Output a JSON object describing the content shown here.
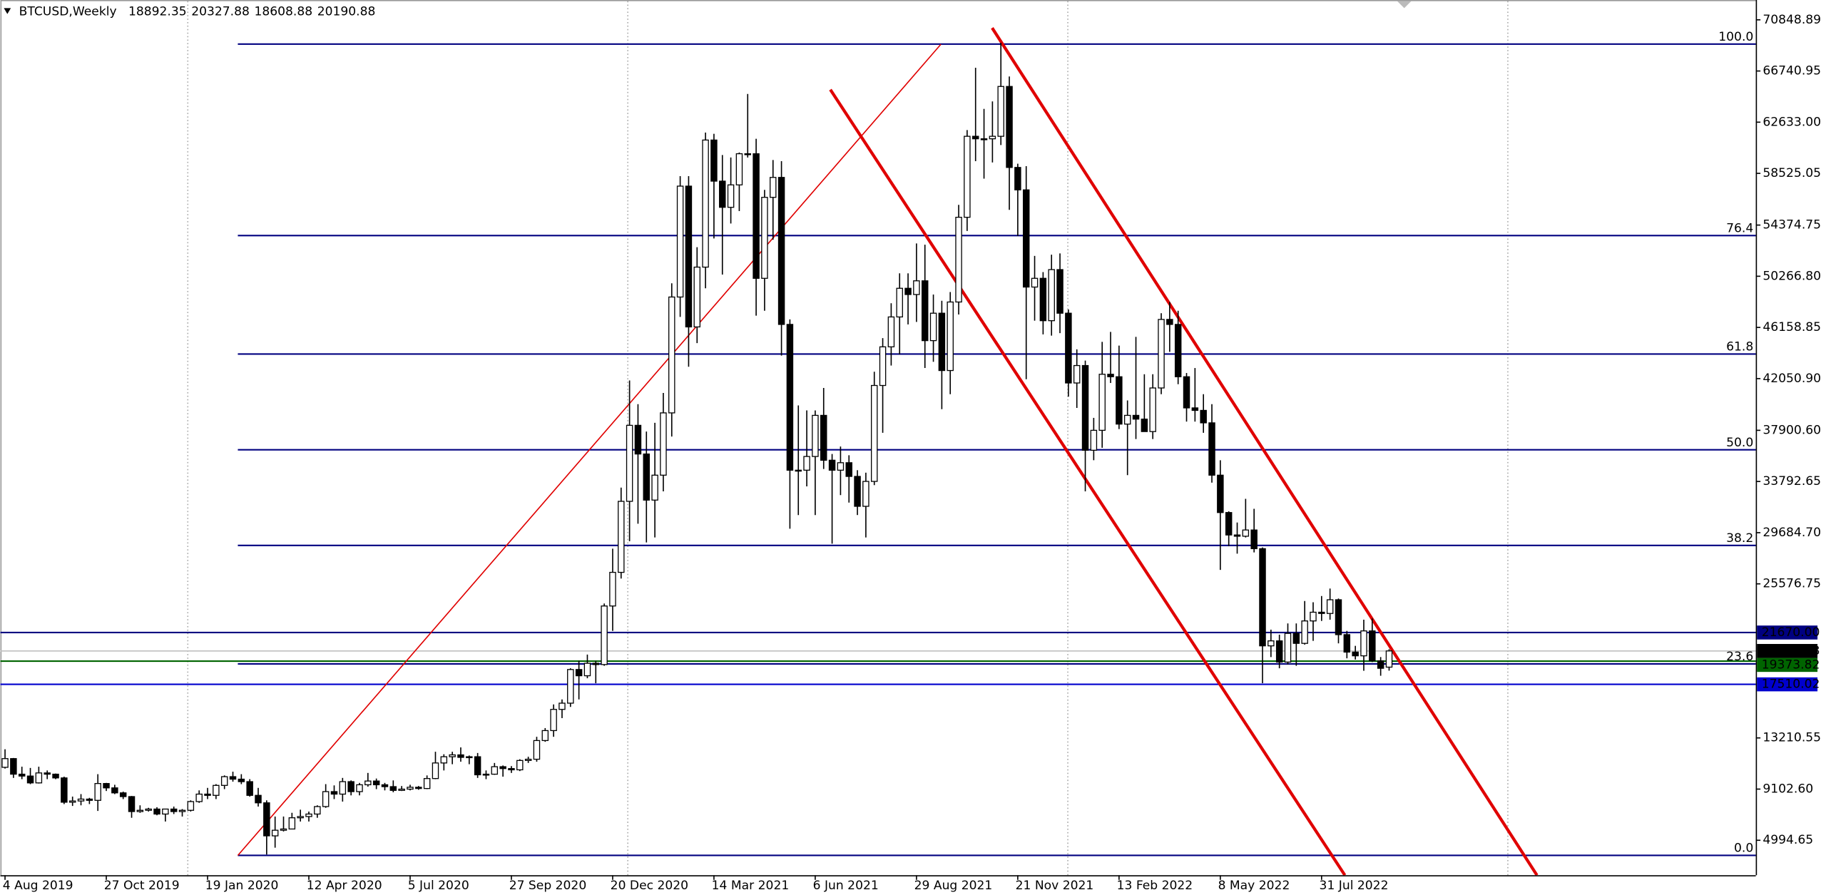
{
  "chart_data": {
    "type": "candlestick",
    "title": "BTCUSD,Weekly",
    "categories": [
      "4 Aug 2019",
      null,
      null,
      null,
      null,
      null,
      null,
      null,
      null,
      null,
      null,
      null,
      "27 Oct 2019",
      null,
      null,
      null,
      null,
      null,
      null,
      null,
      null,
      null,
      null,
      null,
      "19 Jan 2020",
      null,
      null,
      null,
      null,
      null,
      null,
      null,
      null,
      null,
      null,
      null,
      "12 Apr 2020",
      null,
      null,
      null,
      null,
      null,
      null,
      null,
      null,
      null,
      null,
      null,
      "5 Jul 2020",
      null,
      null,
      null,
      null,
      null,
      null,
      null,
      null,
      null,
      null,
      null,
      "27 Sep 2020",
      null,
      null,
      null,
      null,
      null,
      null,
      null,
      null,
      null,
      null,
      null,
      "20 Dec 2020",
      null,
      null,
      null,
      null,
      null,
      null,
      null,
      null,
      null,
      null,
      null,
      "14 Mar 2021",
      null,
      null,
      null,
      null,
      null,
      null,
      null,
      null,
      null,
      null,
      null,
      "6 Jun 2021",
      null,
      null,
      null,
      null,
      null,
      null,
      null,
      null,
      null,
      null,
      null,
      "29 Aug 2021",
      null,
      null,
      null,
      null,
      null,
      null,
      null,
      null,
      null,
      null,
      null,
      "21 Nov 2021",
      null,
      null,
      null,
      null,
      null,
      null,
      null,
      null,
      null,
      null,
      null,
      "13 Feb 2022",
      null,
      null,
      null,
      null,
      null,
      null,
      null,
      null,
      null,
      null,
      null,
      "8 May 2022",
      null,
      null,
      null,
      null,
      null,
      null,
      null,
      null,
      null,
      null,
      null,
      "31 Jul 2022",
      null,
      null,
      null,
      null,
      null,
      null,
      null,
      null
    ],
    "ohlc": [
      [
        10850,
        12300,
        10750,
        11550
      ],
      [
        11550,
        11600,
        10000,
        10300
      ],
      [
        10300,
        10900,
        9900,
        10150
      ],
      [
        10150,
        10800,
        9500,
        9600
      ],
      [
        9600,
        10900,
        9550,
        10400
      ],
      [
        10400,
        10600,
        9900,
        10300
      ],
      [
        10300,
        10350,
        9900,
        10000
      ],
      [
        10000,
        10100,
        7900,
        8050
      ],
      [
        8050,
        8500,
        7750,
        8150
      ],
      [
        8150,
        8700,
        7800,
        8300
      ],
      [
        8300,
        8400,
        7900,
        8200
      ],
      [
        8200,
        10300,
        7350,
        9550
      ],
      [
        9550,
        9600,
        8950,
        9200
      ],
      [
        9200,
        9450,
        8700,
        8800
      ],
      [
        8800,
        8900,
        8300,
        8500
      ],
      [
        8500,
        8550,
        6800,
        7300
      ],
      [
        7300,
        7800,
        7200,
        7400
      ],
      [
        7400,
        7600,
        7300,
        7500
      ],
      [
        7500,
        7650,
        7000,
        7100
      ],
      [
        7100,
        7500,
        6500,
        7500
      ],
      [
        7500,
        7700,
        7100,
        7300
      ],
      [
        7300,
        7500,
        6900,
        7400
      ],
      [
        7400,
        8200,
        7300,
        8100
      ],
      [
        8100,
        9000,
        8000,
        8700
      ],
      [
        8700,
        9200,
        8300,
        8600
      ],
      [
        8600,
        9500,
        8300,
        9400
      ],
      [
        9400,
        10200,
        9100,
        10100
      ],
      [
        10100,
        10500,
        9700,
        9900
      ],
      [
        9900,
        10300,
        9500,
        9700
      ],
      [
        9700,
        9900,
        8500,
        8600
      ],
      [
        8600,
        9200,
        7700,
        8000
      ],
      [
        8000,
        8200,
        3850,
        5350
      ],
      [
        5350,
        6900,
        4400,
        5800
      ],
      [
        5800,
        6900,
        5700,
        5900
      ],
      [
        5900,
        7200,
        5900,
        6800
      ],
      [
        6800,
        7450,
        6500,
        6900
      ],
      [
        6900,
        7300,
        6500,
        7100
      ],
      [
        7100,
        7800,
        6800,
        7700
      ],
      [
        7700,
        9500,
        7600,
        8900
      ],
      [
        8900,
        9400,
        8300,
        8700
      ],
      [
        8700,
        10000,
        8100,
        9700
      ],
      [
        9700,
        9800,
        8600,
        8900
      ],
      [
        8900,
        9600,
        8600,
        9450
      ],
      [
        9450,
        10400,
        9300,
        9750
      ],
      [
        9750,
        9950,
        9100,
        9450
      ],
      [
        9450,
        9600,
        9000,
        9300
      ],
      [
        9300,
        9800,
        8850,
        9000
      ],
      [
        9000,
        9350,
        8950,
        9100
      ],
      [
        9100,
        9450,
        9000,
        9250
      ],
      [
        9250,
        9350,
        9050,
        9150
      ],
      [
        9150,
        10200,
        9100,
        9950
      ],
      [
        9950,
        12100,
        9900,
        11200
      ],
      [
        11200,
        11900,
        10600,
        11700
      ],
      [
        11700,
        12100,
        11100,
        11850
      ],
      [
        11850,
        12450,
        11300,
        11650
      ],
      [
        11650,
        11800,
        11100,
        11700
      ],
      [
        11700,
        12000,
        10000,
        10250
      ],
      [
        10250,
        10600,
        9900,
        10300
      ],
      [
        10300,
        11200,
        10250,
        10900
      ],
      [
        10900,
        11000,
        10100,
        10750
      ],
      [
        10750,
        10950,
        10400,
        10650
      ],
      [
        10650,
        11500,
        10550,
        11400
      ],
      [
        11400,
        11700,
        11200,
        11500
      ],
      [
        11500,
        13300,
        11300,
        13000
      ],
      [
        13000,
        14000,
        12900,
        13800
      ],
      [
        13800,
        15900,
        13300,
        15500
      ],
      [
        15500,
        16300,
        14800,
        16000
      ],
      [
        16000,
        18800,
        15700,
        18700
      ],
      [
        18700,
        19400,
        16300,
        18200
      ],
      [
        18200,
        19900,
        18000,
        19200
      ],
      [
        19200,
        19400,
        17600,
        19100
      ],
      [
        19100,
        24000,
        19000,
        23800
      ],
      [
        23800,
        28400,
        21800,
        26500
      ],
      [
        26500,
        33300,
        26000,
        32200
      ],
      [
        32200,
        41900,
        29000,
        38300
      ],
      [
        38300,
        40000,
        30400,
        36000
      ],
      [
        36000,
        37800,
        28900,
        32300
      ],
      [
        32300,
        38500,
        29300,
        34300
      ],
      [
        34300,
        40900,
        33000,
        39300
      ],
      [
        39300,
        49700,
        37400,
        48600
      ],
      [
        48600,
        58300,
        47000,
        57500
      ],
      [
        57500,
        58300,
        43000,
        46200
      ],
      [
        46200,
        52600,
        44900,
        51000
      ],
      [
        51000,
        61800,
        49300,
        61200
      ],
      [
        61200,
        61700,
        53300,
        57900
      ],
      [
        57900,
        60000,
        50400,
        55800
      ],
      [
        55800,
        59800,
        54500,
        57600
      ],
      [
        57600,
        60200,
        55500,
        60100
      ],
      [
        60100,
        64900,
        59800,
        60100
      ],
      [
        60100,
        61300,
        47100,
        50100
      ],
      [
        50100,
        57200,
        47500,
        56600
      ],
      [
        56600,
        59600,
        53200,
        58200
      ],
      [
        58200,
        59500,
        43900,
        46400
      ],
      [
        46400,
        46800,
        30000,
        34700
      ],
      [
        34700,
        39900,
        31100,
        34700
      ],
      [
        34700,
        39500,
        33400,
        35800
      ],
      [
        35800,
        39500,
        31100,
        39100
      ],
      [
        39100,
        41300,
        34800,
        35500
      ],
      [
        35500,
        36000,
        28800,
        34700
      ],
      [
        34700,
        36600,
        32700,
        35300
      ],
      [
        35300,
        35900,
        32100,
        34200
      ],
      [
        34200,
        34700,
        31100,
        31800
      ],
      [
        31800,
        34500,
        29300,
        33800
      ],
      [
        33800,
        42600,
        33500,
        41500
      ],
      [
        41500,
        45300,
        37700,
        44600
      ],
      [
        44600,
        48100,
        43100,
        47000
      ],
      [
        47000,
        50500,
        44000,
        49300
      ],
      [
        49300,
        50500,
        46400,
        48800
      ],
      [
        48800,
        52900,
        46600,
        49900
      ],
      [
        49900,
        52800,
        42900,
        45100
      ],
      [
        45100,
        48800,
        43400,
        47300
      ],
      [
        47300,
        48300,
        39600,
        42700
      ],
      [
        42700,
        49000,
        40800,
        48200
      ],
      [
        48200,
        56000,
        47200,
        55000
      ],
      [
        55000,
        62000,
        53900,
        61500
      ],
      [
        61500,
        67000,
        59500,
        61300
      ],
      [
        61300,
        63700,
        58100,
        61300
      ],
      [
        61300,
        64300,
        59400,
        61500
      ],
      [
        61500,
        69000,
        60800,
        65500
      ],
      [
        65500,
        66300,
        55600,
        59000
      ],
      [
        59000,
        59300,
        53500,
        57200
      ],
      [
        57200,
        59100,
        42000,
        49400
      ],
      [
        49400,
        51900,
        46700,
        50100
      ],
      [
        50100,
        50600,
        45600,
        46700
      ],
      [
        46700,
        52000,
        45500,
        50800
      ],
      [
        50800,
        52100,
        45700,
        47300
      ],
      [
        47300,
        47600,
        40600,
        41700
      ],
      [
        41700,
        44400,
        39700,
        43100
      ],
      [
        43100,
        43500,
        33000,
        36300
      ],
      [
        36300,
        38900,
        35500,
        37900
      ],
      [
        37900,
        45000,
        36500,
        42400
      ],
      [
        42400,
        45800,
        41700,
        42200
      ],
      [
        42200,
        44700,
        38000,
        38400
      ],
      [
        38400,
        40300,
        34300,
        39100
      ],
      [
        39100,
        45400,
        37200,
        38800
      ],
      [
        38800,
        42400,
        37800,
        37800
      ],
      [
        37800,
        42400,
        37200,
        41300
      ],
      [
        41300,
        47300,
        40800,
        46800
      ],
      [
        46800,
        48200,
        44200,
        46400
      ],
      [
        46400,
        47500,
        41600,
        42200
      ],
      [
        42200,
        42500,
        38600,
        39700
      ],
      [
        39700,
        42900,
        38600,
        39500
      ],
      [
        39500,
        40800,
        37700,
        38500
      ],
      [
        38500,
        40000,
        33700,
        34300
      ],
      [
        34300,
        35500,
        26700,
        31300
      ],
      [
        31300,
        31400,
        28600,
        29500
      ],
      [
        29500,
        30500,
        28000,
        29400
      ],
      [
        29400,
        32400,
        29300,
        29900
      ],
      [
        29900,
        31600,
        28100,
        28400
      ],
      [
        28400,
        28500,
        17600,
        20600
      ],
      [
        20600,
        21900,
        19700,
        21000
      ],
      [
        21000,
        21500,
        18800,
        19300
      ],
      [
        19300,
        22400,
        19100,
        21600
      ],
      [
        21600,
        22400,
        19000,
        20800
      ],
      [
        20800,
        24200,
        20700,
        22600
      ],
      [
        22600,
        24100,
        21000,
        23300
      ],
      [
        23300,
        24600,
        22600,
        23200
      ],
      [
        23200,
        25200,
        22700,
        24300
      ],
      [
        24300,
        24400,
        20800,
        21500
      ],
      [
        21500,
        21800,
        19600,
        20100
      ],
      [
        20100,
        20600,
        19500,
        19800
      ],
      [
        19800,
        22700,
        18600,
        21800
      ],
      [
        21800,
        22800,
        19300,
        19400
      ],
      [
        19400,
        19700,
        18200,
        18800
      ],
      [
        18892.35,
        20327.88,
        18608.88,
        20190.88
      ]
    ],
    "up_color": "#ffffff",
    "down_color": "#000000",
    "outline_color": "#000000",
    "ylim": [
      2190,
      72440
    ],
    "yticks": [
      70848.89,
      66740.95,
      {
        "value": 62633,
        "label": "62633.00"
      },
      58525.05,
      54374.75,
      {
        "value": 50266.8,
        "label": "50266.80"
      },
      46158.85,
      {
        "value": 42050.9,
        "label": "42050.90"
      },
      {
        "value": 37900.6,
        "label": "37900.60"
      },
      33792.65,
      {
        "value": 29684.7,
        "label": "29684.70"
      },
      25576.75,
      13210.55,
      {
        "value": 9102.6,
        "label": "9102.60"
      },
      4994.65
    ],
    "fibonacci": {
      "color": "#000080",
      "levels": [
        {
          "level": {
            "value": 100,
            "label": "100.0"
          },
          "price": 68900
        },
        {
          "level": 76.4,
          "price": 53530
        },
        {
          "level": 61.8,
          "price": 44020
        },
        {
          "level": {
            "value": 50,
            "label": "50.0"
          },
          "price": 36340
        },
        {
          "level": 38.2,
          "price": 28660
        },
        {
          "level": 23.6,
          "price": 19150
        },
        {
          "level": {
            "value": 0,
            "label": "0.0"
          },
          "price": 3780
        }
      ]
    },
    "hlines": [
      {
        "price": {
          "value": 21670,
          "label": "21670.00"
        },
        "color": "#000080"
      },
      {
        "price": 19373.82,
        "color": "#006400"
      },
      {
        "price": 17510.02,
        "color": "#0000cd"
      }
    ],
    "current_price_color": "#c0c0c0",
    "current_price_label_color": "#000000"
  }
}
